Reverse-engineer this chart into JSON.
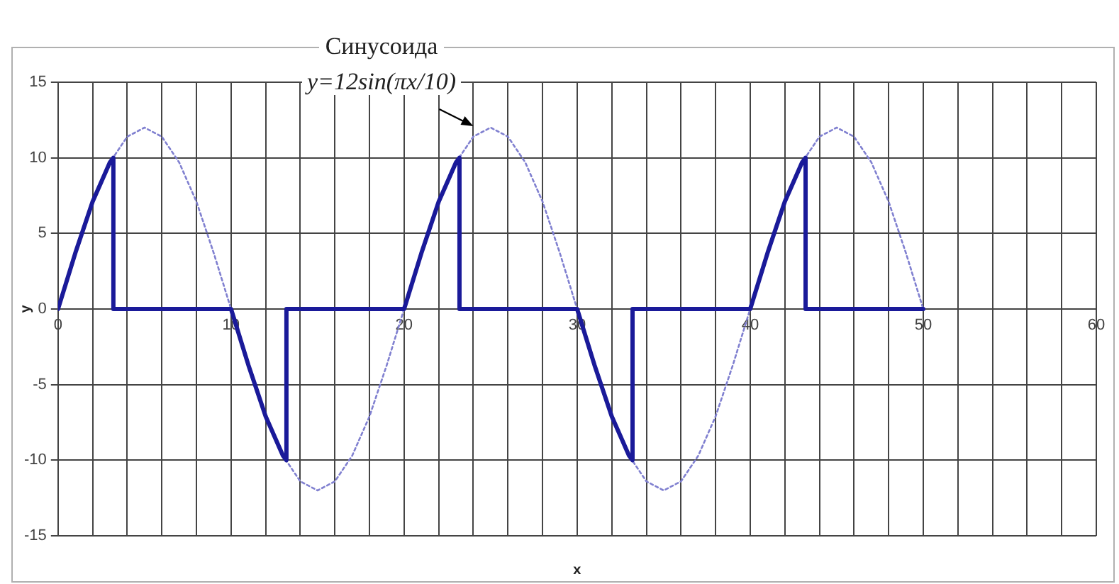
{
  "chart_data": {
    "type": "line",
    "title": "Синусоида",
    "xlabel": "x",
    "ylabel": "y",
    "annotations": [
      {
        "text": "y=12sin(πx/10)",
        "x": 24,
        "y": 12
      }
    ],
    "xlim": [
      0,
      60
    ],
    "ylim": [
      -15,
      15
    ],
    "xticks": [
      0,
      {
        "value": 2,
        "label": null
      },
      {
        "value": 4,
        "label": null
      },
      {
        "value": 6,
        "label": null
      },
      {
        "value": 8,
        "label": null
      },
      10,
      {
        "value": 12,
        "label": null
      },
      {
        "value": 14,
        "label": null
      },
      {
        "value": 16,
        "label": null
      },
      {
        "value": 18,
        "label": null
      },
      20,
      {
        "value": 22,
        "label": null
      },
      {
        "value": 24,
        "label": null
      },
      {
        "value": 26,
        "label": null
      },
      {
        "value": 28,
        "label": null
      },
      30,
      {
        "value": 32,
        "label": null
      },
      {
        "value": 34,
        "label": null
      },
      {
        "value": 36,
        "label": null
      },
      {
        "value": 38,
        "label": null
      },
      40,
      {
        "value": 42,
        "label": null
      },
      {
        "value": 44,
        "label": null
      },
      {
        "value": 46,
        "label": null
      },
      {
        "value": 48,
        "label": null
      },
      50,
      {
        "value": 52,
        "label": null
      },
      {
        "value": 54,
        "label": null
      },
      {
        "value": 56,
        "label": null
      },
      {
        "value": 58,
        "label": null
      },
      60
    ],
    "yticks": [
      -15,
      -10,
      -5,
      0,
      5,
      10,
      15
    ],
    "grid": true,
    "marker": "none",
    "series": [
      {
        "color": "#1a1a99",
        "line_style": "solid",
        "x": [
          0,
          1,
          2,
          3,
          3.2,
          3.2,
          10,
          11,
          12,
          13,
          13.2,
          13.2,
          20,
          21,
          22,
          23,
          23.2,
          23.2,
          30,
          31,
          32,
          33,
          33.2,
          33.2,
          40,
          41,
          42,
          43,
          43.2,
          43.2,
          50
        ],
        "values": [
          0,
          3.7,
          7.1,
          9.7,
          10,
          0,
          0,
          -3.7,
          -7.1,
          -9.7,
          -10,
          0,
          0,
          3.7,
          7.1,
          9.7,
          10,
          0,
          0,
          -3.7,
          -7.1,
          -9.7,
          -10,
          0,
          0,
          3.7,
          7.1,
          9.7,
          10,
          0,
          0
        ]
      },
      {
        "color": "#8080d0",
        "line_style": "dotted",
        "x": [
          0,
          1,
          2,
          3,
          4,
          5,
          6,
          7,
          8,
          9,
          10,
          11,
          12,
          13,
          14,
          15,
          16,
          17,
          18,
          19,
          20,
          21,
          22,
          23,
          24,
          25,
          26,
          27,
          28,
          29,
          30,
          31,
          32,
          33,
          34,
          35,
          36,
          37,
          38,
          39,
          40,
          41,
          42,
          43,
          44,
          45,
          46,
          47,
          48,
          49,
          50
        ],
        "values": [
          0,
          3.7,
          7.1,
          9.7,
          11.4,
          12,
          11.4,
          9.7,
          7.1,
          3.7,
          0,
          -3.7,
          -7.1,
          -9.7,
          -11.4,
          -12,
          -11.4,
          -9.7,
          -7.1,
          -3.7,
          0,
          3.7,
          7.1,
          9.7,
          11.4,
          12,
          11.4,
          9.7,
          7.1,
          3.7,
          0,
          -3.7,
          -7.1,
          -9.7,
          -11.4,
          -12,
          -11.4,
          -9.7,
          -7.1,
          -3.7,
          0,
          3.7,
          7.1,
          9.7,
          11.4,
          12,
          11.4,
          9.7,
          7.1,
          3.7,
          0
        ]
      }
    ]
  }
}
